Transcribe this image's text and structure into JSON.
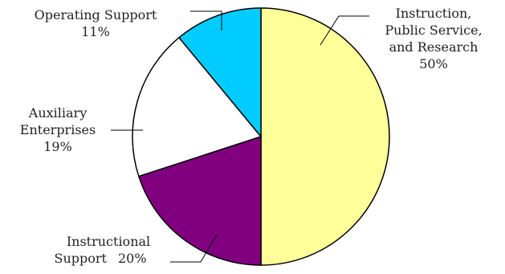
{
  "chart_data": {
    "type": "pie",
    "slices": [
      {
        "label_lines": [
          "Instruction,",
          "Public Service,",
          "and Research"
        ],
        "pct_text": "50%",
        "value": 50,
        "color": "#ffff99"
      },
      {
        "label_lines": [
          "Instructional"
        ],
        "last_line": "Support",
        "pct_text": "20%",
        "value": 20,
        "color": "#800080"
      },
      {
        "label_lines": [
          "Auxiliary",
          "Enterprises"
        ],
        "pct_text": "19%",
        "value": 19,
        "color": "#ffffff"
      },
      {
        "label_lines": [
          "Operating Support"
        ],
        "pct_text": "11%",
        "value": 11,
        "color": "#00ccff"
      }
    ]
  }
}
